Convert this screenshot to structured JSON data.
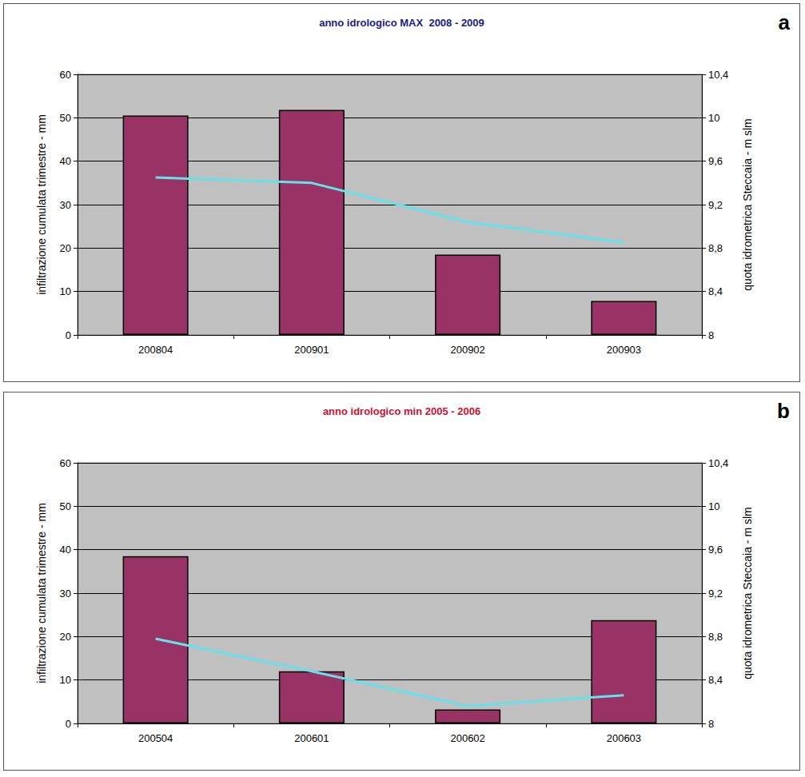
{
  "chart_data": [
    {
      "type": "bar",
      "title": "anno idrologico MAX  2008 - 2009",
      "annotation": "a",
      "categories": [
        "200804",
        "200901",
        "200902",
        "200903"
      ],
      "series": [
        {
          "type": "bar",
          "color": "#993366",
          "values": [
            50.5,
            51.8,
            18.5,
            7.8
          ]
        },
        {
          "type": "line",
          "axis": "y2",
          "color": "#66e0ea",
          "marker": "none",
          "values": [
            9.45,
            9.4,
            9.04,
            8.85
          ]
        }
      ],
      "y_label": "infiltrazione cumulata trimestre - mm",
      "y2_label": "quota idrometrica Steccaia - m slm",
      "ylim": [
        0,
        60
      ],
      "yticks": [
        0,
        10,
        20,
        30,
        40,
        50,
        60
      ],
      "y2lim": [
        8,
        10.4
      ],
      "y2ticks": [
        8,
        {
          "value": 8.4,
          "label": "8,4"
        },
        {
          "value": 8.8,
          "label": "8,8"
        },
        {
          "value": 9.2,
          "label": "9,2"
        },
        {
          "value": 9.6,
          "label": "9,6"
        },
        10,
        {
          "value": 10.4,
          "label": "10,4"
        }
      ],
      "grid": true
    },
    {
      "type": "bar",
      "title": "anno idrologico min 2005 - 2006",
      "annotation": "b",
      "categories": [
        "200504",
        "200601",
        "200602",
        "200603"
      ],
      "series": [
        {
          "type": "bar",
          "color": "#993366",
          "values": [
            38.5,
            12,
            3.2,
            23.8
          ]
        },
        {
          "type": "line",
          "axis": "y2",
          "color": "#66e0ea",
          "marker": "none",
          "values": [
            8.78,
            8.48,
            8.16,
            8.26
          ]
        }
      ],
      "y_label": "infiltrazione cumulata trimestre - mm",
      "y2_label": "quota idrometrica Steccaia - m slm",
      "ylim": [
        0,
        60
      ],
      "yticks": [
        0,
        10,
        20,
        30,
        40,
        50,
        60
      ],
      "y2lim": [
        8,
        10.4
      ],
      "y2ticks": [
        8,
        {
          "value": 8.4,
          "label": "8,4"
        },
        {
          "value": 8.8,
          "label": "8,8"
        },
        {
          "value": 9.2,
          "label": "9,2"
        },
        {
          "value": 9.6,
          "label": "9,6"
        },
        10,
        {
          "value": 10.4,
          "label": "10,4"
        }
      ],
      "grid": true
    }
  ]
}
